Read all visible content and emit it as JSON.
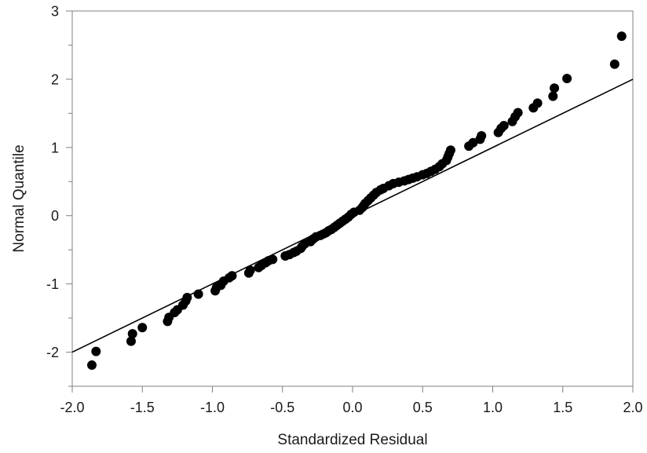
{
  "chart_data": {
    "type": "scatter",
    "title": "",
    "xlabel": "Standardized Residual",
    "ylabel": "Normal Quantile",
    "xlim": [
      -2.0,
      2.0
    ],
    "ylim": [
      -2.5,
      3.0
    ],
    "x_ticks": [
      {
        "value": -2.0,
        "label": "-2.0"
      },
      {
        "value": -1.5,
        "label": "-1.5"
      },
      {
        "value": -1.0,
        "label": "-1.0"
      },
      {
        "value": -0.5,
        "label": "-0.5"
      },
      {
        "value": 0.0,
        "label": "0.0"
      },
      {
        "value": 0.5,
        "label": "0.5"
      },
      {
        "value": 1.0,
        "label": "1.0"
      },
      {
        "value": 1.5,
        "label": "1.5"
      },
      {
        "value": 2.0,
        "label": "2.0"
      }
    ],
    "y_ticks": [
      {
        "value": -2,
        "label": "-2"
      },
      {
        "value": -1,
        "label": "-1"
      },
      {
        "value": 0,
        "label": "0"
      },
      {
        "value": 1,
        "label": "1"
      },
      {
        "value": 2,
        "label": "2"
      },
      {
        "value": 3,
        "label": "3"
      }
    ],
    "y_minor_ticks": [
      -2.5,
      -1.5,
      -0.5,
      0.5,
      1.5,
      2.5
    ],
    "grid": false,
    "reference_line": {
      "x": [
        -2.0,
        2.0
      ],
      "y": [
        -2.0,
        2.0
      ]
    },
    "colors": {
      "points": "#000000",
      "line": "#000000",
      "frame": "#808080",
      "text": "#1a1a1a"
    },
    "points": [
      {
        "x": -1.86,
        "y": -2.19
      },
      {
        "x": -1.83,
        "y": -1.99
      },
      {
        "x": -1.58,
        "y": -1.84
      },
      {
        "x": -1.57,
        "y": -1.73
      },
      {
        "x": -1.5,
        "y": -1.64
      },
      {
        "x": -1.32,
        "y": -1.55
      },
      {
        "x": -1.31,
        "y": -1.49
      },
      {
        "x": -1.27,
        "y": -1.42
      },
      {
        "x": -1.25,
        "y": -1.38
      },
      {
        "x": -1.21,
        "y": -1.31
      },
      {
        "x": -1.19,
        "y": -1.25
      },
      {
        "x": -1.18,
        "y": -1.2
      },
      {
        "x": -1.1,
        "y": -1.15
      },
      {
        "x": -0.98,
        "y": -1.1
      },
      {
        "x": -0.97,
        "y": -1.05
      },
      {
        "x": -0.94,
        "y": -1.02
      },
      {
        "x": -0.92,
        "y": -0.96
      },
      {
        "x": -0.88,
        "y": -0.91
      },
      {
        "x": -0.86,
        "y": -0.88
      },
      {
        "x": -0.74,
        "y": -0.84
      },
      {
        "x": -0.73,
        "y": -0.8
      },
      {
        "x": -0.67,
        "y": -0.76
      },
      {
        "x": -0.65,
        "y": -0.73
      },
      {
        "x": -0.62,
        "y": -0.69
      },
      {
        "x": -0.6,
        "y": -0.66
      },
      {
        "x": -0.57,
        "y": -0.64
      },
      {
        "x": -0.48,
        "y": -0.59
      },
      {
        "x": -0.45,
        "y": -0.57
      },
      {
        "x": -0.42,
        "y": -0.54
      },
      {
        "x": -0.4,
        "y": -0.52
      },
      {
        "x": -0.37,
        "y": -0.48
      },
      {
        "x": -0.36,
        "y": -0.45
      },
      {
        "x": -0.34,
        "y": -0.41
      },
      {
        "x": -0.3,
        "y": -0.38
      },
      {
        "x": -0.28,
        "y": -0.34
      },
      {
        "x": -0.26,
        "y": -0.31
      },
      {
        "x": -0.23,
        "y": -0.29
      },
      {
        "x": -0.21,
        "y": -0.27
      },
      {
        "x": -0.19,
        "y": -0.25
      },
      {
        "x": -0.17,
        "y": -0.22
      },
      {
        "x": -0.15,
        "y": -0.2
      },
      {
        "x": -0.13,
        "y": -0.17
      },
      {
        "x": -0.11,
        "y": -0.14
      },
      {
        "x": -0.09,
        "y": -0.11
      },
      {
        "x": -0.07,
        "y": -0.08
      },
      {
        "x": -0.05,
        "y": -0.05
      },
      {
        "x": -0.03,
        "y": -0.02
      },
      {
        "x": -0.01,
        "y": 0.02
      },
      {
        "x": 0.01,
        "y": 0.05
      },
      {
        "x": 0.05,
        "y": 0.08
      },
      {
        "x": 0.07,
        "y": 0.12
      },
      {
        "x": 0.08,
        "y": 0.15
      },
      {
        "x": 0.09,
        "y": 0.18
      },
      {
        "x": 0.11,
        "y": 0.22
      },
      {
        "x": 0.13,
        "y": 0.26
      },
      {
        "x": 0.15,
        "y": 0.3
      },
      {
        "x": 0.17,
        "y": 0.34
      },
      {
        "x": 0.2,
        "y": 0.38
      },
      {
        "x": 0.22,
        "y": 0.4
      },
      {
        "x": 0.26,
        "y": 0.44
      },
      {
        "x": 0.29,
        "y": 0.47
      },
      {
        "x": 0.33,
        "y": 0.49
      },
      {
        "x": 0.37,
        "y": 0.51
      },
      {
        "x": 0.4,
        "y": 0.53
      },
      {
        "x": 0.43,
        "y": 0.55
      },
      {
        "x": 0.46,
        "y": 0.57
      },
      {
        "x": 0.5,
        "y": 0.6
      },
      {
        "x": 0.53,
        "y": 0.62
      },
      {
        "x": 0.56,
        "y": 0.65
      },
      {
        "x": 0.59,
        "y": 0.68
      },
      {
        "x": 0.62,
        "y": 0.72
      },
      {
        "x": 0.64,
        "y": 0.76
      },
      {
        "x": 0.67,
        "y": 0.81
      },
      {
        "x": 0.68,
        "y": 0.86
      },
      {
        "x": 0.69,
        "y": 0.91
      },
      {
        "x": 0.7,
        "y": 0.96
      },
      {
        "x": 0.83,
        "y": 1.02
      },
      {
        "x": 0.86,
        "y": 1.07
      },
      {
        "x": 0.91,
        "y": 1.12
      },
      {
        "x": 0.92,
        "y": 1.17
      },
      {
        "x": 1.04,
        "y": 1.22
      },
      {
        "x": 1.06,
        "y": 1.28
      },
      {
        "x": 1.08,
        "y": 1.32
      },
      {
        "x": 1.14,
        "y": 1.38
      },
      {
        "x": 1.16,
        "y": 1.45
      },
      {
        "x": 1.18,
        "y": 1.51
      },
      {
        "x": 1.29,
        "y": 1.58
      },
      {
        "x": 1.32,
        "y": 1.65
      },
      {
        "x": 1.43,
        "y": 1.75
      },
      {
        "x": 1.44,
        "y": 1.87
      },
      {
        "x": 1.53,
        "y": 2.01
      },
      {
        "x": 1.87,
        "y": 2.22
      },
      {
        "x": 1.92,
        "y": 2.63
      }
    ]
  }
}
